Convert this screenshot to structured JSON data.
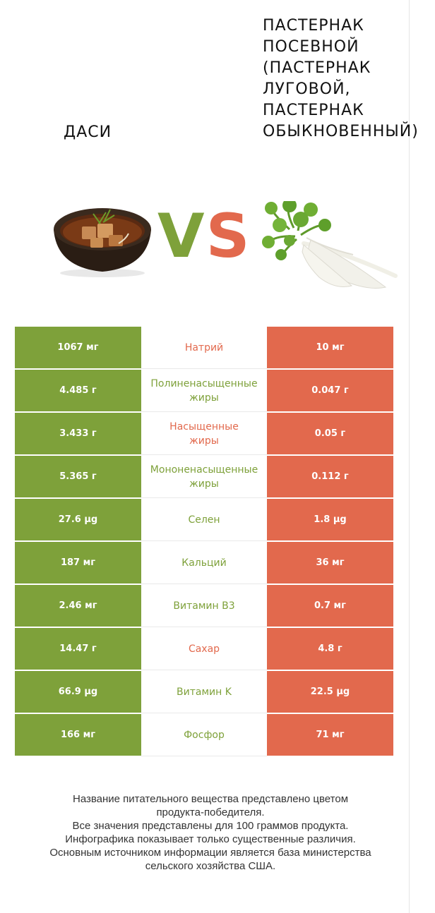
{
  "header": {
    "left_title": "ДАСИ",
    "right_title": "ПАСТЕРНАК\nПОСЕВНОЙ\n(ПАСТЕРНАК\nЛУГОВОЙ,\nПАСТЕРНАК\nОБЫКНОВЕННЫЙ)",
    "vs_v": "V",
    "vs_s": "S"
  },
  "colors": {
    "left": "#7ea13a",
    "right": "#e2694d"
  },
  "rows": [
    {
      "left": "1067 мг",
      "nutrient": "Натрий",
      "right": "10 мг",
      "winner": "right"
    },
    {
      "left": "4.485 г",
      "nutrient": "Полиненасыщенные\nжиры",
      "right": "0.047 г",
      "winner": "left"
    },
    {
      "left": "3.433 г",
      "nutrient": "Насыщенные\nжиры",
      "right": "0.05 г",
      "winner": "right"
    },
    {
      "left": "5.365 г",
      "nutrient": "Мононенасыщенные\nжиры",
      "right": "0.112 г",
      "winner": "left"
    },
    {
      "left": "27.6 µg",
      "nutrient": "Селен",
      "right": "1.8 µg",
      "winner": "left"
    },
    {
      "left": "187 мг",
      "nutrient": "Кальций",
      "right": "36 мг",
      "winner": "left"
    },
    {
      "left": "2.46 мг",
      "nutrient": "Витамин B3",
      "right": "0.7 мг",
      "winner": "left"
    },
    {
      "left": "14.47 г",
      "nutrient": "Сахар",
      "right": "4.8 г",
      "winner": "right"
    },
    {
      "left": "66.9 µg",
      "nutrient": "Витамин K",
      "right": "22.5 µg",
      "winner": "left"
    },
    {
      "left": "166 мг",
      "nutrient": "Фосфор",
      "right": "71 мг",
      "winner": "left"
    }
  ],
  "footer": {
    "line1": "Название питательного вещества представлено цветом",
    "line2": "продукта-победителя.",
    "line3": "Все значения представлены для 100 граммов продукта.",
    "line4": "Инфографика показывает только существенные различия.",
    "line5": "Основным источником информации является база министерства",
    "line6": "сельского хозяйства США."
  }
}
